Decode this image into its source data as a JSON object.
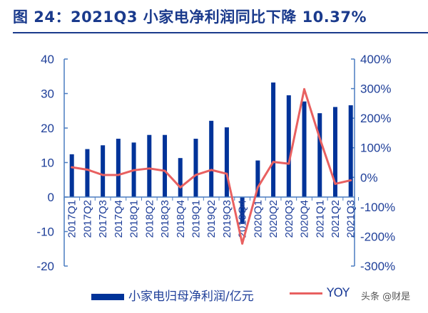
{
  "title": "图 24：2021Q3 小家电净利润同比下降 10.37%",
  "watermark": "头条 @财是",
  "colors": {
    "bar": "#003399",
    "line": "#e86060",
    "axis": "#4a7cc0",
    "text": "#1f3f99"
  },
  "chart_data": {
    "type": "bar+line",
    "categories": [
      "2017Q1",
      "2017Q2",
      "2017Q3",
      "2017Q4",
      "2018Q1",
      "2018Q2",
      "2018Q3",
      "2018Q4",
      "2019Q1",
      "2019Q2",
      "2019Q3",
      "2019Q4",
      "2020Q1",
      "2020Q2",
      "2020Q3",
      "2020Q4",
      "2021Q1",
      "2021Q2",
      "2021Q3"
    ],
    "series": [
      {
        "name": "小家电归母净利润/亿元",
        "type": "bar",
        "axis": "left",
        "values": [
          12.4,
          13.9,
          15.0,
          16.9,
          15.8,
          18.0,
          18.0,
          11.3,
          16.9,
          22.1,
          20.2,
          -7.8,
          10.6,
          33.2,
          29.5,
          27.7,
          24.3,
          26.1,
          26.6
        ]
      },
      {
        "name": "YOY",
        "type": "line",
        "axis": "right",
        "values": [
          34,
          26,
          8,
          8,
          24,
          30,
          22,
          -34,
          8,
          25,
          12,
          -224,
          -34,
          52,
          46,
          298,
          132,
          -22,
          -10
        ]
      }
    ],
    "y_left": {
      "range": [
        -20,
        40
      ],
      "ticks": [
        "-20",
        "-10",
        "0",
        "10",
        "20",
        "30",
        "40"
      ]
    },
    "y_right": {
      "range": [
        -300,
        400
      ],
      "ticks": [
        "-300%",
        "-200%",
        "-100%",
        "0%",
        "100%",
        "200%",
        "300%",
        "400%"
      ]
    },
    "legend_placement": "bottom",
    "grid": false
  }
}
